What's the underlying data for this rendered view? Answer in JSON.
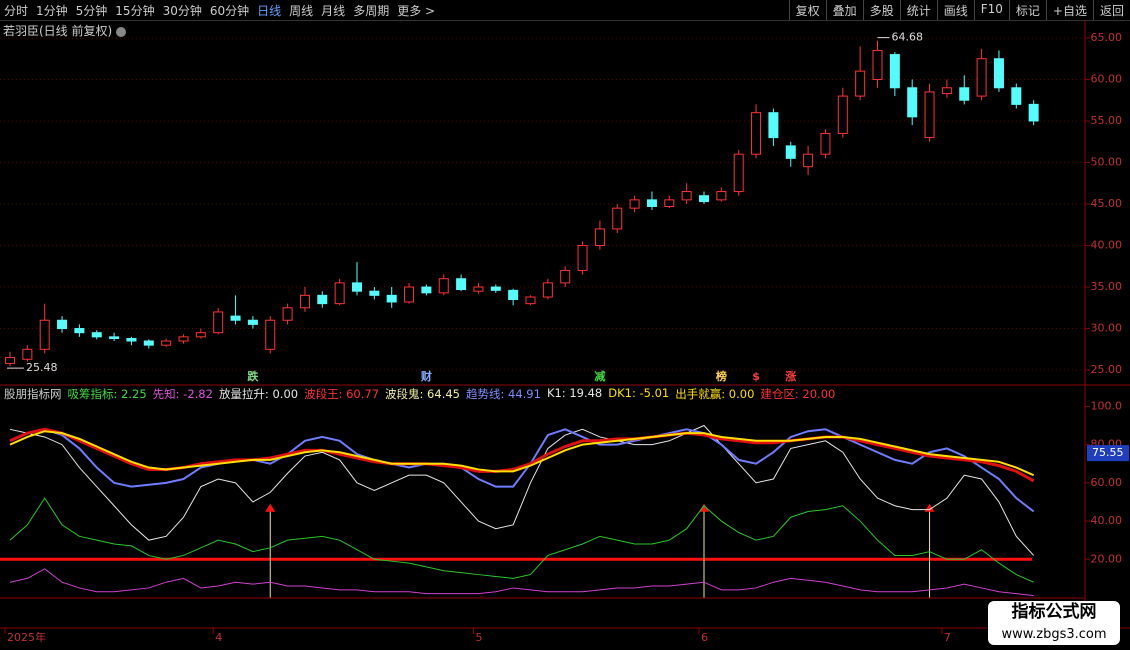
{
  "toolbar": {
    "left": [
      "分时",
      "1分钟",
      "5分钟",
      "15分钟",
      "30分钟",
      "60分钟",
      "日线",
      "周线",
      "月线",
      "多周期",
      "更多 >"
    ],
    "active_index": 6,
    "right": [
      "复权",
      "叠加",
      "多股",
      "统计",
      "画线",
      "F10",
      "标记",
      "+自选",
      "返回"
    ]
  },
  "header": {
    "title": "若羽臣(日线 前复权)"
  },
  "indicator_legend": {
    "title": "股朋指标网",
    "items": [
      {
        "text": "吸筹指标: 2.25",
        "color": "#3cdc3c"
      },
      {
        "text": "先知: -2.82",
        "color": "#e050e0"
      },
      {
        "text": "放量拉升: 0.00",
        "color": "#e6e6e6"
      },
      {
        "text": "波段王: 60.77",
        "color": "#ff3030"
      },
      {
        "text": "波段鬼: 64.45",
        "color": "#f0f0a0"
      },
      {
        "text": "趋势线: 44.91",
        "color": "#7f8cff"
      },
      {
        "text": "K1: 19.48",
        "color": "#e6e6e6"
      },
      {
        "text": "DK1: -5.01",
        "color": "#ffe000"
      },
      {
        "text": "出手就赢: 0.00",
        "color": "#ffe000"
      },
      {
        "text": "建仓区: 20.00",
        "color": "#ff3030"
      }
    ]
  },
  "watermark": {
    "title": "指标公式网",
    "url": "www.zbgs3.com"
  },
  "chart_data": [
    {
      "type": "candlestick",
      "up_color": "#ff3232",
      "down_color": "#54fcfc",
      "grid": true,
      "categories": [
        "2025年",
        null,
        null,
        null,
        null,
        null,
        null,
        null,
        null,
        null,
        null,
        null,
        "4",
        null,
        null,
        null,
        null,
        null,
        null,
        null,
        null,
        null,
        null,
        null,
        null,
        null,
        null,
        "5",
        null,
        null,
        null,
        null,
        null,
        null,
        null,
        null,
        null,
        null,
        null,
        null,
        "6",
        null,
        null,
        null,
        null,
        null,
        null,
        null,
        null,
        null,
        null,
        null,
        null,
        null,
        "7",
        null,
        null,
        null,
        null,
        null
      ],
      "open": [
        25.8,
        26.3,
        27.5,
        31,
        30,
        29.5,
        29,
        28.8,
        28.5,
        28,
        28.5,
        29,
        29.5,
        31.5,
        31,
        27.5,
        31,
        32.5,
        34,
        33,
        35.5,
        34.5,
        34,
        33.2,
        35,
        34.3,
        36,
        34.5,
        35,
        34.6,
        33,
        33.8,
        35.5,
        37,
        40,
        42,
        44.5,
        45.5,
        44.7,
        45.5,
        46,
        45.5,
        46.5,
        51,
        56,
        52,
        49.5,
        51,
        53.5,
        58,
        60,
        63,
        59,
        53,
        58.3,
        59,
        58,
        62.5,
        59,
        57
      ],
      "high": [
        27.2,
        28,
        33,
        31.5,
        30.5,
        29.8,
        29.5,
        29,
        28.7,
        28.8,
        29.3,
        30,
        32.5,
        34,
        31.5,
        31.5,
        33,
        35,
        34.5,
        36,
        38,
        35,
        35,
        35.5,
        35.3,
        36.5,
        36.5,
        35.5,
        35.3,
        34.8,
        34,
        36,
        37.5,
        40.5,
        43,
        45,
        46,
        46.5,
        46,
        47.5,
        46.5,
        47,
        51.5,
        57,
        56.5,
        52.5,
        52,
        54,
        59,
        64,
        64.68,
        63.3,
        60,
        59.5,
        60,
        60.5,
        63.7,
        63.5,
        59.5,
        57.5
      ],
      "low": [
        25.48,
        26,
        27,
        29.5,
        29,
        28.7,
        28.5,
        28,
        27.6,
        27.8,
        28.2,
        28.8,
        29.3,
        30.5,
        30,
        27,
        30.5,
        32,
        32.5,
        32.8,
        34,
        33.5,
        32.5,
        33,
        34,
        34,
        34.5,
        34.2,
        34.3,
        32.8,
        32.8,
        33.5,
        35,
        36.5,
        39.5,
        41.5,
        44,
        44.3,
        44.5,
        45,
        45,
        45.3,
        46,
        50.5,
        52,
        49.5,
        48.5,
        50.5,
        53,
        57.5,
        59,
        58,
        54.5,
        52.5,
        57.8,
        57,
        57.5,
        58.5,
        56.5,
        54.5
      ],
      "close": [
        26.5,
        27.5,
        31,
        30,
        29.5,
        29,
        28.8,
        28.5,
        28,
        28.5,
        29,
        29.5,
        32,
        31,
        30.5,
        31,
        32.5,
        34,
        33,
        35.5,
        34.5,
        34,
        33.2,
        35,
        34.3,
        36,
        34.7,
        35,
        34.6,
        33.5,
        33.8,
        35.5,
        37,
        40,
        42,
        44.5,
        45.5,
        44.7,
        45.5,
        46.5,
        45.3,
        46.5,
        51,
        56,
        53,
        50.5,
        51,
        53.5,
        58,
        61,
        63.5,
        59,
        55.5,
        58.5,
        59,
        57.5,
        62.5,
        59,
        57,
        55
      ],
      "ylim": [
        23.2,
        66.2
      ],
      "yticks": [
        {
          "value": 25,
          "label": "25.00"
        },
        {
          "value": 30,
          "label": "30.00"
        },
        {
          "value": 35,
          "label": "35.00"
        },
        {
          "value": 40,
          "label": "40.00"
        },
        {
          "value": 45,
          "label": "45.00"
        },
        {
          "value": 50,
          "label": "50.00"
        },
        {
          "value": 55,
          "label": "55.00"
        },
        {
          "value": 60,
          "label": "60.00"
        },
        {
          "value": 65,
          "label": "65.00"
        }
      ],
      "flags": [
        {
          "index": 14,
          "text": "跌",
          "color": "#7fdc7f"
        },
        {
          "index": 24,
          "text": "财",
          "color": "#7fb0ff"
        },
        {
          "index": 34,
          "text": "减",
          "color": "#3cdc3c"
        },
        {
          "index": 41,
          "text": "榜",
          "color": "#ffd24d"
        },
        {
          "index": 43,
          "text": "$",
          "color": "#ff3c3c"
        },
        {
          "index": 45,
          "text": "涨",
          "color": "#ff3c3c"
        }
      ]
    },
    {
      "type": "line",
      "ylim": [
        0,
        107
      ],
      "yticks": [
        {
          "value": 20,
          "label": "20.00"
        },
        {
          "value": 40,
          "label": "40.00"
        },
        {
          "value": 60,
          "label": "60.00"
        },
        {
          "value": 80,
          "label": "80.00"
        },
        {
          "value": 100,
          "label": "100.0"
        }
      ],
      "hline": 20,
      "hline_color": "#ff1010",
      "current_value": {
        "value": 75.55,
        "label": "75.55"
      },
      "signals": [
        null,
        null,
        null,
        null,
        null,
        null,
        null,
        null,
        null,
        null,
        null,
        null,
        null,
        null,
        null,
        48,
        null,
        null,
        null,
        null,
        null,
        null,
        null,
        null,
        null,
        null,
        null,
        null,
        null,
        null,
        null,
        null,
        null,
        null,
        null,
        null,
        null,
        null,
        null,
        null,
        48,
        null,
        null,
        null,
        null,
        null,
        null,
        null,
        null,
        null,
        null,
        null,
        null,
        48,
        null,
        null,
        null,
        null,
        null,
        null
      ],
      "series": [
        {
          "color": "#28c828",
          "width": 1,
          "values": [
            30,
            38,
            52,
            38,
            32,
            30,
            28,
            27,
            22,
            20,
            22,
            26,
            30,
            28,
            24,
            26,
            30,
            31,
            32,
            30,
            25,
            20,
            19,
            18,
            16,
            14,
            13,
            12,
            11,
            10,
            12,
            22,
            25,
            28,
            32,
            30,
            28,
            28,
            30,
            36,
            48,
            40,
            34,
            30,
            32,
            42,
            45,
            46,
            48,
            40,
            30,
            22,
            22,
            24,
            20,
            20,
            25,
            18,
            12,
            8
          ]
        },
        {
          "color": "#d040d0",
          "width": 1,
          "values": [
            8,
            10,
            15,
            8,
            5,
            3,
            3,
            4,
            5,
            8,
            10,
            5,
            6,
            8,
            7,
            8,
            6,
            6,
            5,
            4,
            4,
            3,
            3,
            3,
            2,
            2,
            2,
            2,
            3,
            5,
            4,
            3,
            3,
            3,
            4,
            5,
            5,
            6,
            6,
            7,
            8,
            4,
            4,
            5,
            8,
            10,
            9,
            8,
            6,
            4,
            3,
            3,
            3,
            4,
            5,
            7,
            5,
            3,
            2,
            1
          ]
        },
        {
          "color": "#e6e6e6",
          "width": 1,
          "values": [
            88,
            86,
            84,
            80,
            68,
            58,
            48,
            38,
            30,
            32,
            42,
            58,
            62,
            60,
            50,
            55,
            65,
            74,
            76,
            72,
            60,
            56,
            60,
            64,
            64,
            60,
            50,
            40,
            36,
            38,
            60,
            78,
            85,
            88,
            84,
            82,
            80,
            80,
            82,
            86,
            90,
            80,
            70,
            60,
            62,
            78,
            80,
            82,
            76,
            62,
            52,
            48,
            46,
            46,
            52,
            64,
            62,
            50,
            32,
            22
          ]
        },
        {
          "color": "#6f7cff",
          "width": 2,
          "values": [
            82,
            86,
            88,
            85,
            78,
            68,
            60,
            58,
            59,
            60,
            62,
            68,
            70,
            72,
            72,
            70,
            75,
            82,
            84,
            82,
            75,
            72,
            70,
            68,
            70,
            70,
            68,
            62,
            58,
            58,
            70,
            85,
            88,
            84,
            80,
            80,
            82,
            84,
            86,
            88,
            86,
            80,
            72,
            70,
            76,
            84,
            87,
            88,
            84,
            80,
            76,
            72,
            70,
            76,
            78,
            74,
            68,
            62,
            52,
            45
          ]
        },
        {
          "color": "#e01010",
          "width": 3,
          "values": [
            82,
            86,
            88,
            86,
            82,
            78,
            74,
            70,
            67,
            67,
            68,
            70,
            71,
            72,
            72,
            73,
            75,
            77,
            77,
            75,
            73,
            71,
            70,
            70,
            70,
            69,
            68,
            66,
            66,
            67,
            70,
            75,
            79,
            82,
            82,
            83,
            83,
            84,
            85,
            86,
            85,
            83,
            82,
            81,
            81,
            82,
            83,
            84,
            84,
            82,
            80,
            78,
            76,
            74,
            73,
            72,
            71,
            69,
            66,
            61
          ]
        },
        {
          "color": "#ffe000",
          "width": 2,
          "values": [
            80,
            84,
            87,
            86,
            83,
            79,
            75,
            71,
            68,
            67,
            68,
            69,
            70,
            71,
            72,
            72,
            74,
            76,
            77,
            76,
            74,
            72,
            70,
            70,
            70,
            70,
            69,
            67,
            66,
            66,
            69,
            73,
            77,
            80,
            81,
            82,
            83,
            84,
            85,
            86,
            86,
            84,
            83,
            82,
            82,
            82,
            83,
            84,
            84,
            83,
            81,
            79,
            77,
            75,
            74,
            73,
            72,
            71,
            68,
            64
          ]
        }
      ]
    }
  ]
}
